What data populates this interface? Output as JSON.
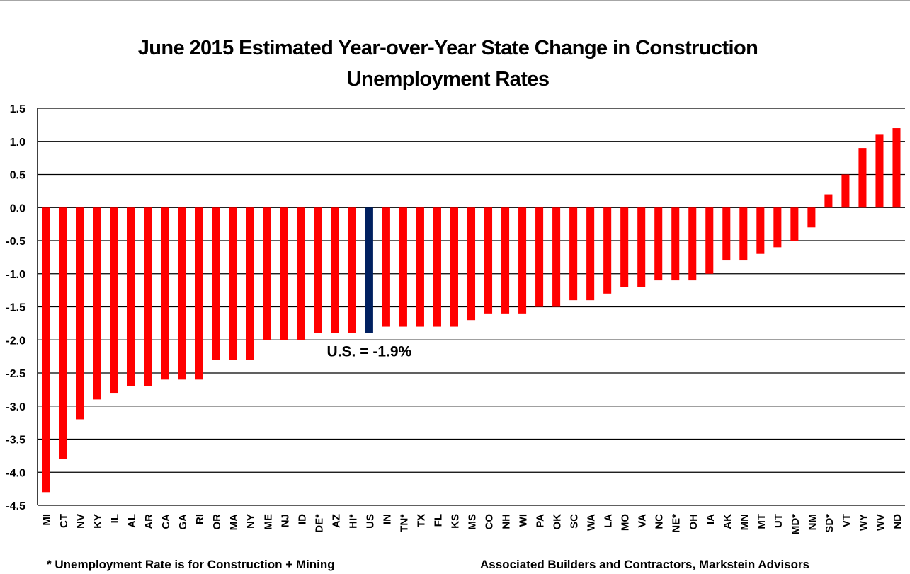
{
  "chart_data": {
    "type": "bar",
    "title": "June 2015 Estimated Year-over-Year State Change in Construction Unemployment Rates",
    "title_lines": [
      "June 2015 Estimated Year-over-Year State Change in Construction",
      "Unemployment Rates"
    ],
    "xlabel": "",
    "ylabel": "",
    "ylim": [
      -4.5,
      1.5
    ],
    "ytick_step": 0.5,
    "yticks": [
      "1.5",
      "1.0",
      "0.5",
      "0.0",
      "-0.5",
      "-1.0",
      "-1.5",
      "-2.0",
      "-2.5",
      "-3.0",
      "-3.5",
      "-4.0",
      "-4.5"
    ],
    "grid": true,
    "legend": "none",
    "categories": [
      "MI",
      "CT",
      "NV",
      "KY",
      "IL",
      "AL",
      "AR",
      "CA",
      "GA",
      "RI",
      "OR",
      "MA",
      "NY",
      "ME",
      "NJ",
      "ID",
      "DE*",
      "AZ",
      "HI*",
      "US",
      "IN",
      "TN*",
      "TX",
      "FL",
      "KS",
      "MS",
      "CO",
      "NH",
      "WI",
      "PA",
      "OK",
      "SC",
      "WA",
      "LA",
      "MO",
      "VA",
      "NC",
      "NE*",
      "OH",
      "IA",
      "AK",
      "MN",
      "MT",
      "UT",
      "MD*",
      "NM",
      "SD*",
      "VT",
      "WY",
      "WV",
      "ND"
    ],
    "values": [
      -4.3,
      -3.8,
      -3.2,
      -2.9,
      -2.8,
      -2.7,
      -2.7,
      -2.6,
      -2.6,
      -2.6,
      -2.3,
      -2.3,
      -2.3,
      -2.0,
      -2.0,
      -2.0,
      -1.9,
      -1.9,
      -1.9,
      -1.9,
      -1.8,
      -1.8,
      -1.8,
      -1.8,
      -1.8,
      -1.7,
      -1.6,
      -1.6,
      -1.6,
      -1.5,
      -1.5,
      -1.4,
      -1.4,
      -1.3,
      -1.2,
      -1.2,
      -1.1,
      -1.1,
      -1.1,
      -1.0,
      -0.8,
      -0.8,
      -0.7,
      -0.6,
      -0.5,
      -0.3,
      0.2,
      0.5,
      0.9,
      1.1,
      1.2
    ],
    "highlight_category": "US",
    "colors": {
      "bar": "#ff0000",
      "highlight": "#002060",
      "grid": "#000000"
    },
    "annotations": [
      {
        "text": "U.S. = -1.9%",
        "near": "US"
      }
    ]
  },
  "footnotes": {
    "left": "* Unemployment Rate is for Construction + Mining",
    "right": "Associated Builders and Contractors, Markstein Advisors"
  }
}
